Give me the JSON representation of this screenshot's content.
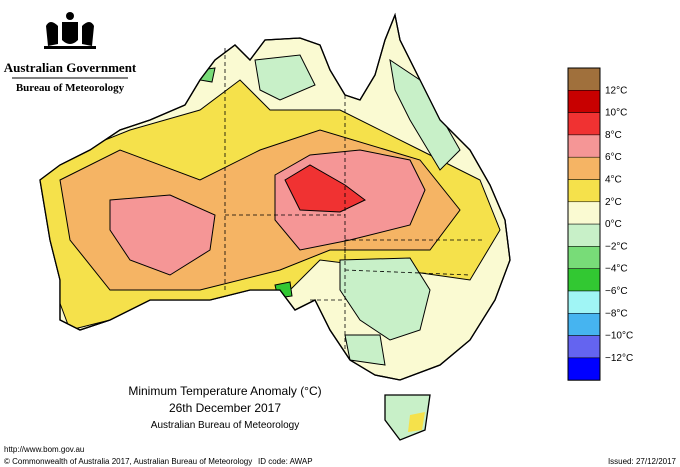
{
  "header": {
    "title": "Australian Government",
    "subtitle": "Bureau of Meteorology"
  },
  "legend": {
    "items": [
      {
        "color": "#a0703c"
      },
      {
        "label": "12°C",
        "color": "#c80000"
      },
      {
        "label": "10°C",
        "color": "#f03232"
      },
      {
        "label": "8°C",
        "color": "#f59696"
      },
      {
        "label": "6°C",
        "color": "#f5b464"
      },
      {
        "label": "4°C",
        "color": "#f5e14b"
      },
      {
        "label": "2°C",
        "color": "#fafad2"
      },
      {
        "label": "0°C",
        "color": "#c8f0c8"
      },
      {
        "label": "−2°C",
        "color": "#78dc78"
      },
      {
        "label": "−4°C",
        "color": "#32c832"
      },
      {
        "label": "−6°C",
        "color": "#a0f5f5"
      },
      {
        "label": "−8°C",
        "color": "#46b4f0"
      },
      {
        "label": "−10°C",
        "color": "#6464f0"
      },
      {
        "label": "−12°C",
        "color": "#0000ff"
      }
    ]
  },
  "caption": {
    "title": "Minimum Temperature Anomaly (°C)",
    "date": "26th December 2017",
    "source": "Australian Bureau of Meteorology"
  },
  "footer": {
    "url": "http://www.bom.gov.au",
    "copyright": "© Commonwealth of Australia 2017, Australian Bureau of Meteorology",
    "id_code": "ID code: AWAP",
    "issued": "Issued: 27/12/2017"
  }
}
